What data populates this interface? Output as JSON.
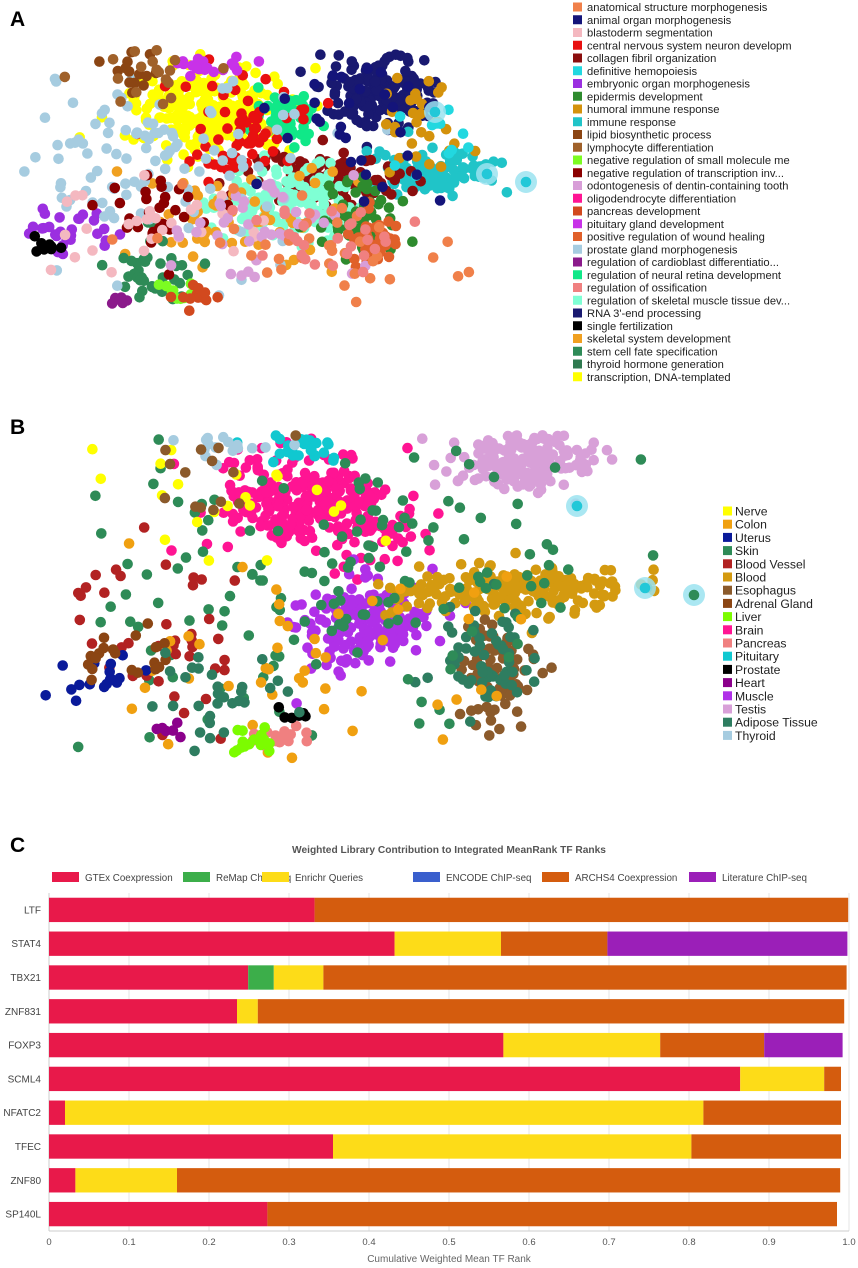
{
  "panels": {
    "a": "A",
    "b": "B",
    "c": "C"
  },
  "panel_a": {
    "legend": [
      {
        "label": "anatomical structure morphogenesis",
        "color": "#F0804A"
      },
      {
        "label": "animal organ morphogenesis",
        "color": "#14147A"
      },
      {
        "label": "blastoderm segmentation",
        "color": "#F4B8C0"
      },
      {
        "label": "central nervous system neuron developm",
        "color": "#E81010"
      },
      {
        "label": "collagen fibril organization",
        "color": "#8B0E0E"
      },
      {
        "label": "definitive hemopoiesis",
        "color": "#22D8E0"
      },
      {
        "label": "embryonic organ morphogenesis",
        "color": "#9B2FE0"
      },
      {
        "label": "epidermis development",
        "color": "#2E8B2E"
      },
      {
        "label": "humoral immune response",
        "color": "#D4920C"
      },
      {
        "label": "immune response",
        "color": "#20C4C8"
      },
      {
        "label": "lipid biosynthetic process",
        "color": "#8B4513"
      },
      {
        "label": "lymphocyte differentiation",
        "color": "#A0612A"
      },
      {
        "label": "negative regulation of small molecule me",
        "color": "#7CFC22"
      },
      {
        "label": "negative regulation of transcription inv...",
        "color": "#8B0000"
      },
      {
        "label": "odontogenesis of dentin-containing tooth",
        "color": "#D89ED8"
      },
      {
        "label": "oligodendrocyte differentiation",
        "color": "#FF1493"
      },
      {
        "label": "pancreas development",
        "color": "#D2491E"
      },
      {
        "label": "pituitary gland development",
        "color": "#C832E8"
      },
      {
        "label": "positive regulation of wound healing",
        "color": "#E0602A"
      },
      {
        "label": "prostate gland morphogenesis",
        "color": "#A6CCE0"
      },
      {
        "label": "regulation of cardioblast differentiatio...",
        "color": "#8B1A8B"
      },
      {
        "label": "regulation of neural retina development",
        "color": "#10E888"
      },
      {
        "label": "regulation of ossification",
        "color": "#F08080"
      },
      {
        "label": "regulation of skeletal muscle tissue dev...",
        "color": "#7FFFD4"
      },
      {
        "label": "RNA 3'-end processing",
        "color": "#191970"
      },
      {
        "label": "single fertilization",
        "color": "#000000"
      },
      {
        "label": "skeletal system development",
        "color": "#F0A020"
      },
      {
        "label": "stem cell fate specification",
        "color": "#2E8B57"
      },
      {
        "label": "thyroid hormone generation",
        "color": "#2F7A50"
      },
      {
        "label": "transcription, DNA-templated",
        "color": "#FFFF00"
      }
    ]
  },
  "panel_b": {
    "legend": [
      {
        "label": "Nerve",
        "color": "#FFFF00"
      },
      {
        "label": "Colon",
        "color": "#F0A010"
      },
      {
        "label": "Uterus",
        "color": "#0A1A9A"
      },
      {
        "label": "Skin",
        "color": "#2E8B57"
      },
      {
        "label": "Blood Vessel",
        "color": "#B22222"
      },
      {
        "label": "Blood",
        "color": "#D49A10"
      },
      {
        "label": "Esophagus",
        "color": "#8B5A2B"
      },
      {
        "label": "Adrenal Gland",
        "color": "#8B4513"
      },
      {
        "label": "Liver",
        "color": "#7CFC00"
      },
      {
        "label": "Brain",
        "color": "#FF1493"
      },
      {
        "label": "Pancreas",
        "color": "#F08080"
      },
      {
        "label": "Pituitary",
        "color": "#10C8D0"
      },
      {
        "label": "Prostate",
        "color": "#000000"
      },
      {
        "label": "Heart",
        "color": "#8B008B"
      },
      {
        "label": "Muscle",
        "color": "#B030E8"
      },
      {
        "label": "Testis",
        "color": "#D8A0D8"
      },
      {
        "label": "Adipose Tissue",
        "color": "#2E7D60"
      },
      {
        "label": "Thyroid",
        "color": "#A6CCE0"
      }
    ]
  },
  "chart_data": {
    "type": "bar",
    "orientation": "horizontal",
    "stacked": true,
    "title": "Weighted Library Contribution to Integrated MeanRank TF Ranks",
    "xlabel": "Cumulative Weighted Mean TF Rank",
    "ylabel": "",
    "xlim": [
      0,
      1
    ],
    "xticks": [
      "0",
      "0.1",
      "0.2",
      "0.3",
      "0.4",
      "0.5",
      "0.6",
      "0.7",
      "0.8",
      "0.9",
      "1.0"
    ],
    "legend_position": "top",
    "categories": [
      "LTF",
      "STAT4",
      "TBX21",
      "ZNF831",
      "FOXP3",
      "SCML4",
      "NFATC2",
      "TFEC",
      "ZNF80",
      "SP140L"
    ],
    "series": [
      {
        "name": "GTEx Coexpression",
        "color": "#E8194A",
        "values": [
          0.332,
          0.432,
          0.249,
          0.235,
          0.568,
          0.864,
          0.02,
          0.355,
          0.033,
          0.273
        ]
      },
      {
        "name": "ReMap ChIP-seq",
        "color": "#3CAE4A",
        "values": [
          0,
          0,
          0.032,
          0,
          0,
          0,
          0,
          0,
          0,
          0
        ]
      },
      {
        "name": "Enrichr Queries",
        "color": "#FDDC18",
        "values": [
          0,
          0.133,
          0.062,
          0.026,
          0.196,
          0.105,
          0.798,
          0.448,
          0.127,
          0
        ]
      },
      {
        "name": "ENCODE ChIP-seq",
        "color": "#3A5FCD",
        "values": [
          0,
          0,
          0,
          0,
          0,
          0,
          0,
          0,
          0,
          0
        ]
      },
      {
        "name": "ARCHS4 Coexpression",
        "color": "#D45C0E",
        "values": [
          0.667,
          0.133,
          0.654,
          0.733,
          0.13,
          0.021,
          0.172,
          0.187,
          0.829,
          0.712
        ]
      },
      {
        "name": "Literature ChIP-seq",
        "color": "#9B1FB8",
        "values": [
          0,
          0.3,
          0,
          0,
          0.098,
          0,
          0,
          0,
          0,
          0
        ]
      }
    ]
  }
}
